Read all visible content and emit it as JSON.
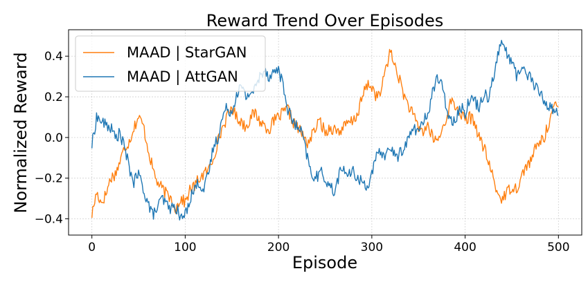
{
  "chart_data": {
    "type": "line",
    "title": "Reward Trend Over Episodes",
    "xlabel": "Episode",
    "ylabel": "Normalized Reward",
    "xlim": [
      -25,
      525
    ],
    "ylim": [
      -0.48,
      0.53
    ],
    "xticks": [
      0,
      100,
      200,
      300,
      400,
      500
    ],
    "yticks": [
      -0.4,
      -0.2,
      0.0,
      0.2,
      0.4
    ],
    "xtick_labels": [
      "0",
      "100",
      "200",
      "300",
      "400",
      "500"
    ],
    "ytick_labels": [
      "−0.4",
      "−0.2",
      "0.0",
      "0.2",
      "0.4"
    ],
    "grid": true,
    "legend_position": "top-left",
    "series": [
      {
        "name": "MAAD | StarGAN",
        "color": "#ff7f0e",
        "anchors": [
          [
            0,
            -0.38
          ],
          [
            5,
            -0.27
          ],
          [
            10,
            -0.32
          ],
          [
            15,
            -0.28
          ],
          [
            20,
            -0.2
          ],
          [
            25,
            -0.18
          ],
          [
            30,
            -0.12
          ],
          [
            35,
            -0.05
          ],
          [
            40,
            -0.02
          ],
          [
            45,
            0.05
          ],
          [
            50,
            0.1
          ],
          [
            55,
            0.06
          ],
          [
            60,
            -0.05
          ],
          [
            65,
            -0.15
          ],
          [
            70,
            -0.22
          ],
          [
            75,
            -0.25
          ],
          [
            80,
            -0.28
          ],
          [
            85,
            -0.3
          ],
          [
            90,
            -0.35
          ],
          [
            95,
            -0.3
          ],
          [
            100,
            -0.32
          ],
          [
            105,
            -0.26
          ],
          [
            110,
            -0.24
          ],
          [
            115,
            -0.2
          ],
          [
            120,
            -0.18
          ],
          [
            125,
            -0.16
          ],
          [
            130,
            -0.1
          ],
          [
            135,
            -0.02
          ],
          [
            140,
            0.05
          ],
          [
            145,
            0.1
          ],
          [
            150,
            0.15
          ],
          [
            155,
            0.1
          ],
          [
            160,
            0.08
          ],
          [
            165,
            0.05
          ],
          [
            170,
            0.1
          ],
          [
            175,
            0.12
          ],
          [
            180,
            0.08
          ],
          [
            185,
            0.06
          ],
          [
            190,
            0.04
          ],
          [
            195,
            0.08
          ],
          [
            200,
            0.1
          ],
          [
            205,
            0.12
          ],
          [
            210,
            0.14
          ],
          [
            215,
            0.08
          ],
          [
            220,
            0.05
          ],
          [
            225,
            0.02
          ],
          [
            230,
            -0.03
          ],
          [
            235,
            0.0
          ],
          [
            240,
            0.05
          ],
          [
            245,
            0.08
          ],
          [
            250,
            0.02
          ],
          [
            255,
            0.05
          ],
          [
            260,
            0.04
          ],
          [
            265,
            0.03
          ],
          [
            270,
            0.05
          ],
          [
            275,
            0.07
          ],
          [
            280,
            0.08
          ],
          [
            285,
            0.12
          ],
          [
            290,
            0.2
          ],
          [
            295,
            0.26
          ],
          [
            300,
            0.25
          ],
          [
            305,
            0.2
          ],
          [
            310,
            0.22
          ],
          [
            315,
            0.35
          ],
          [
            320,
            0.42
          ],
          [
            325,
            0.35
          ],
          [
            330,
            0.28
          ],
          [
            335,
            0.2
          ],
          [
            340,
            0.15
          ],
          [
            345,
            0.1
          ],
          [
            350,
            0.05
          ],
          [
            355,
            0.03
          ],
          [
            360,
            0.06
          ],
          [
            365,
            0.0
          ],
          [
            370,
            -0.02
          ],
          [
            375,
            0.03
          ],
          [
            380,
            0.1
          ],
          [
            385,
            0.18
          ],
          [
            390,
            0.15
          ],
          [
            395,
            0.12
          ],
          [
            400,
            0.08
          ],
          [
            405,
            0.1
          ],
          [
            410,
            0.08
          ],
          [
            415,
            0.0
          ],
          [
            420,
            -0.05
          ],
          [
            425,
            -0.12
          ],
          [
            430,
            -0.2
          ],
          [
            435,
            -0.28
          ],
          [
            440,
            -0.3
          ],
          [
            445,
            -0.27
          ],
          [
            450,
            -0.24
          ],
          [
            455,
            -0.25
          ],
          [
            460,
            -0.2
          ],
          [
            465,
            -0.14
          ],
          [
            470,
            -0.12
          ],
          [
            475,
            -0.06
          ],
          [
            480,
            -0.02
          ],
          [
            485,
            0.0
          ],
          [
            490,
            0.08
          ],
          [
            495,
            0.15
          ],
          [
            500,
            0.15
          ]
        ]
      },
      {
        "name": "MAAD | AttGAN",
        "color": "#1f77b4",
        "anchors": [
          [
            0,
            -0.04
          ],
          [
            5,
            0.1
          ],
          [
            10,
            0.08
          ],
          [
            15,
            0.06
          ],
          [
            20,
            0.05
          ],
          [
            25,
            0.0
          ],
          [
            30,
            0.02
          ],
          [
            35,
            -0.05
          ],
          [
            40,
            -0.15
          ],
          [
            45,
            -0.22
          ],
          [
            50,
            -0.18
          ],
          [
            55,
            -0.25
          ],
          [
            60,
            -0.32
          ],
          [
            65,
            -0.38
          ],
          [
            70,
            -0.35
          ],
          [
            75,
            -0.3
          ],
          [
            80,
            -0.33
          ],
          [
            85,
            -0.35
          ],
          [
            90,
            -0.34
          ],
          [
            95,
            -0.4
          ],
          [
            100,
            -0.38
          ],
          [
            105,
            -0.3
          ],
          [
            110,
            -0.25
          ],
          [
            115,
            -0.22
          ],
          [
            120,
            -0.26
          ],
          [
            125,
            -0.18
          ],
          [
            130,
            -0.05
          ],
          [
            135,
            0.0
          ],
          [
            140,
            0.1
          ],
          [
            145,
            0.15
          ],
          [
            150,
            0.12
          ],
          [
            155,
            0.22
          ],
          [
            160,
            0.25
          ],
          [
            165,
            0.2
          ],
          [
            170,
            0.22
          ],
          [
            175,
            0.24
          ],
          [
            180,
            0.3
          ],
          [
            185,
            0.34
          ],
          [
            190,
            0.3
          ],
          [
            195,
            0.32
          ],
          [
            200,
            0.34
          ],
          [
            205,
            0.25
          ],
          [
            210,
            0.14
          ],
          [
            215,
            0.08
          ],
          [
            220,
            0.05
          ],
          [
            225,
            0.02
          ],
          [
            230,
            -0.08
          ],
          [
            235,
            -0.18
          ],
          [
            240,
            -0.2
          ],
          [
            245,
            -0.17
          ],
          [
            250,
            -0.2
          ],
          [
            255,
            -0.24
          ],
          [
            260,
            -0.27
          ],
          [
            265,
            -0.18
          ],
          [
            270,
            -0.15
          ],
          [
            275,
            -0.19
          ],
          [
            280,
            -0.17
          ],
          [
            285,
            -0.2
          ],
          [
            290,
            -0.22
          ],
          [
            295,
            -0.24
          ],
          [
            300,
            -0.18
          ],
          [
            305,
            -0.1
          ],
          [
            310,
            -0.07
          ],
          [
            315,
            -0.09
          ],
          [
            320,
            -0.04
          ],
          [
            325,
            -0.1
          ],
          [
            330,
            -0.08
          ],
          [
            335,
            -0.04
          ],
          [
            340,
            0.0
          ],
          [
            345,
            0.05
          ],
          [
            350,
            0.03
          ],
          [
            355,
            0.07
          ],
          [
            360,
            0.12
          ],
          [
            365,
            0.22
          ],
          [
            370,
            0.3
          ],
          [
            375,
            0.25
          ],
          [
            380,
            0.15
          ],
          [
            385,
            0.08
          ],
          [
            390,
            0.1
          ],
          [
            395,
            0.15
          ],
          [
            400,
            0.12
          ],
          [
            405,
            0.2
          ],
          [
            410,
            0.18
          ],
          [
            415,
            0.15
          ],
          [
            420,
            0.22
          ],
          [
            425,
            0.2
          ],
          [
            430,
            0.3
          ],
          [
            435,
            0.4
          ],
          [
            440,
            0.48
          ],
          [
            445,
            0.4
          ],
          [
            450,
            0.38
          ],
          [
            455,
            0.3
          ],
          [
            460,
            0.35
          ],
          [
            465,
            0.32
          ],
          [
            470,
            0.3
          ],
          [
            475,
            0.25
          ],
          [
            480,
            0.22
          ],
          [
            485,
            0.18
          ],
          [
            490,
            0.15
          ],
          [
            495,
            0.14
          ],
          [
            500,
            0.11
          ]
        ]
      }
    ]
  }
}
